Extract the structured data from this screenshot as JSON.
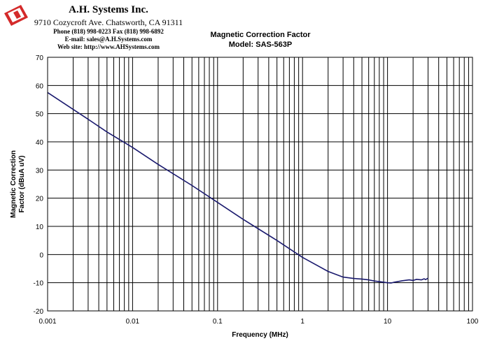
{
  "letterhead": {
    "company": "A.H. Systems Inc.",
    "address": "9710 Cozycroft Ave. Chatsworth, CA 91311",
    "phone": "Phone (818) 998-0223 Fax (818) 998-6892",
    "email": "E-mail:  sales@A.H.Systems.com",
    "website": "Web site:  http://www.AHSystems.com",
    "logo_icon": "ah-systems-logo-icon"
  },
  "chart_data": {
    "type": "line",
    "title": "Magnetic Correction Factor",
    "subtitle": "Model: SAS-563P",
    "xlabel": "Frequency (MHz)",
    "ylabel": "Magnetic Correction Factor (dBuA uV)",
    "xscale": "log",
    "xlim": [
      0.001,
      100
    ],
    "ylim": [
      -20,
      70
    ],
    "xticks": [
      "0.001",
      "0.01",
      "0.1",
      "1",
      "10",
      "100"
    ],
    "yticks": [
      "70",
      "60",
      "50",
      "40",
      "30",
      "20",
      "10",
      "0",
      "-10",
      "-20"
    ],
    "grid": true,
    "series": [
      {
        "color": "#1a1a6e",
        "x": [
          0.001,
          0.002,
          0.003,
          0.005,
          0.01,
          0.02,
          0.05,
          0.1,
          0.2,
          0.5,
          1,
          2,
          3,
          4,
          5,
          6,
          7,
          8,
          9,
          10,
          11,
          12,
          15,
          18,
          20,
          22,
          25,
          27,
          28,
          30
        ],
        "y": [
          57.5,
          51.5,
          48.0,
          43.5,
          38.0,
          32.0,
          24.5,
          18.5,
          12.5,
          5.0,
          -1.0,
          -6.0,
          -8.0,
          -8.5,
          -8.7,
          -9.0,
          -9.4,
          -9.6,
          -9.8,
          -10.0,
          -10.1,
          -9.8,
          -9.3,
          -9.0,
          -9.2,
          -8.8,
          -9.0,
          -8.6,
          -8.9,
          -8.4
        ]
      }
    ]
  }
}
